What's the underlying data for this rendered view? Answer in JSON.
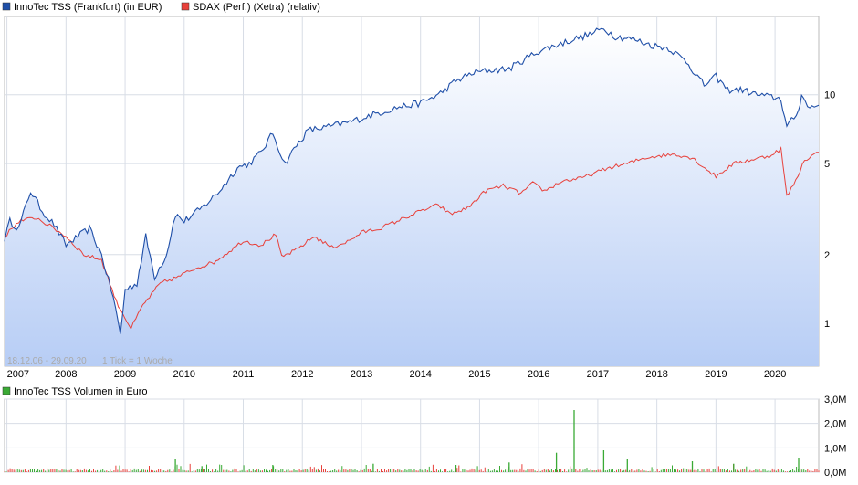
{
  "chart_data": [
    {
      "type": "line",
      "legend": [
        {
          "name": "InnoTec TSS (Frankfurt) (in EUR)",
          "color": "#1f4fa8"
        },
        {
          "name": "SDAX (Perf.) (Xetra) (relativ)",
          "color": "#e8403a"
        }
      ],
      "range_label": "18.12.06 - 29.09.20",
      "tick_label": "1 Tick = 1 Woche",
      "x_ticks": [
        "2007",
        "2008",
        "2009",
        "2010",
        "2011",
        "2012",
        "2013",
        "2014",
        "2015",
        "2016",
        "2017",
        "2018",
        "2019",
        "2020"
      ],
      "y_scale": "log",
      "y_ticks": [
        1,
        2,
        5,
        10
      ],
      "ylim": [
        0.65,
        22
      ],
      "series": [
        {
          "name": "InnoTec TSS (Frankfurt) (in EUR)",
          "color": "#1f4fa8",
          "points": [
            [
              2006.96,
              2.35
            ],
            [
              2007.05,
              2.8
            ],
            [
              2007.2,
              2.6
            ],
            [
              2007.4,
              3.8
            ],
            [
              2007.6,
              3.1
            ],
            [
              2007.8,
              2.7
            ],
            [
              2008.0,
              2.2
            ],
            [
              2008.2,
              2.4
            ],
            [
              2008.4,
              2.6
            ],
            [
              2008.6,
              2.0
            ],
            [
              2008.8,
              1.3
            ],
            [
              2008.92,
              0.9
            ],
            [
              2009.0,
              1.4
            ],
            [
              2009.2,
              1.5
            ],
            [
              2009.35,
              2.4
            ],
            [
              2009.5,
              1.6
            ],
            [
              2009.7,
              2.0
            ],
            [
              2009.85,
              3.0
            ],
            [
              2010.0,
              2.8
            ],
            [
              2010.3,
              3.2
            ],
            [
              2010.6,
              3.8
            ],
            [
              2010.9,
              4.8
            ],
            [
              2011.1,
              5.0
            ],
            [
              2011.3,
              5.6
            ],
            [
              2011.5,
              6.8
            ],
            [
              2011.7,
              5.0
            ],
            [
              2011.9,
              6.0
            ],
            [
              2012.1,
              7.0
            ],
            [
              2012.4,
              7.2
            ],
            [
              2012.8,
              7.6
            ],
            [
              2013.2,
              8.2
            ],
            [
              2013.6,
              8.8
            ],
            [
              2014.0,
              9.2
            ],
            [
              2014.3,
              10.0
            ],
            [
              2014.6,
              11.5
            ],
            [
              2014.9,
              12.5
            ],
            [
              2015.2,
              12.8
            ],
            [
              2015.5,
              13.0
            ],
            [
              2015.8,
              14.5
            ],
            [
              2016.0,
              15.5
            ],
            [
              2016.3,
              16.5
            ],
            [
              2016.6,
              17.5
            ],
            [
              2016.9,
              18.5
            ],
            [
              2017.1,
              19.5
            ],
            [
              2017.3,
              18.0
            ],
            [
              2017.6,
              17.5
            ],
            [
              2017.9,
              16.5
            ],
            [
              2018.2,
              16.0
            ],
            [
              2018.5,
              14.0
            ],
            [
              2018.8,
              11.0
            ],
            [
              2019.0,
              12.0
            ],
            [
              2019.2,
              10.5
            ],
            [
              2019.45,
              10.5
            ],
            [
              2019.7,
              10.0
            ],
            [
              2019.9,
              9.8
            ],
            [
              2020.1,
              9.6
            ],
            [
              2020.2,
              7.2
            ],
            [
              2020.4,
              8.5
            ],
            [
              2020.45,
              10.2
            ],
            [
              2020.55,
              8.8
            ],
            [
              2020.74,
              9.0
            ]
          ]
        },
        {
          "name": "SDAX (Perf.) (Xetra) (relativ)",
          "color": "#e8403a",
          "points": [
            [
              2006.96,
              2.4
            ],
            [
              2007.2,
              2.8
            ],
            [
              2007.5,
              2.9
            ],
            [
              2007.8,
              2.6
            ],
            [
              2008.0,
              2.4
            ],
            [
              2008.3,
              2.0
            ],
            [
              2008.6,
              1.9
            ],
            [
              2008.85,
              1.25
            ],
            [
              2009.1,
              0.95
            ],
            [
              2009.3,
              1.2
            ],
            [
              2009.6,
              1.5
            ],
            [
              2009.9,
              1.6
            ],
            [
              2010.2,
              1.75
            ],
            [
              2010.5,
              1.85
            ],
            [
              2010.8,
              2.1
            ],
            [
              2011.0,
              2.3
            ],
            [
              2011.3,
              2.2
            ],
            [
              2011.55,
              2.45
            ],
            [
              2011.65,
              1.95
            ],
            [
              2011.9,
              2.1
            ],
            [
              2012.2,
              2.4
            ],
            [
              2012.5,
              2.15
            ],
            [
              2012.8,
              2.3
            ],
            [
              2013.0,
              2.5
            ],
            [
              2013.3,
              2.6
            ],
            [
              2013.6,
              2.8
            ],
            [
              2014.0,
              3.1
            ],
            [
              2014.3,
              3.3
            ],
            [
              2014.5,
              3.0
            ],
            [
              2014.8,
              3.2
            ],
            [
              2015.1,
              3.8
            ],
            [
              2015.4,
              4.0
            ],
            [
              2015.7,
              3.7
            ],
            [
              2015.9,
              4.1
            ],
            [
              2016.1,
              3.8
            ],
            [
              2016.4,
              4.2
            ],
            [
              2016.7,
              4.3
            ],
            [
              2016.9,
              4.5
            ],
            [
              2017.2,
              4.8
            ],
            [
              2017.5,
              5.0
            ],
            [
              2017.8,
              5.3
            ],
            [
              2018.0,
              5.4
            ],
            [
              2018.3,
              5.5
            ],
            [
              2018.6,
              5.3
            ],
            [
              2018.85,
              4.7
            ],
            [
              2019.0,
              4.4
            ],
            [
              2019.3,
              5.0
            ],
            [
              2019.6,
              5.2
            ],
            [
              2019.9,
              5.4
            ],
            [
              2020.1,
              5.8
            ],
            [
              2020.2,
              3.6
            ],
            [
              2020.35,
              4.2
            ],
            [
              2020.5,
              5.2
            ],
            [
              2020.74,
              5.6
            ]
          ]
        }
      ]
    },
    {
      "type": "bar",
      "title": "InnoTec TSS Volumen in Euro",
      "color": "#3aaa35",
      "alt_color": "#e8403a",
      "y_ticks": [
        "0,0M",
        "1,0M",
        "2,0M",
        "3,0M"
      ],
      "ylim": [
        0,
        3.0
      ],
      "x_range": [
        2006.96,
        2020.74
      ],
      "spikes": [
        {
          "x": 2009.85,
          "value": 0.55
        },
        {
          "x": 2010.3,
          "value": 0.25
        },
        {
          "x": 2011.5,
          "value": 0.3
        },
        {
          "x": 2013.2,
          "value": 0.35
        },
        {
          "x": 2014.6,
          "value": 0.3
        },
        {
          "x": 2015.5,
          "value": 0.4
        },
        {
          "x": 2016.3,
          "value": 0.8
        },
        {
          "x": 2016.6,
          "value": 2.55
        },
        {
          "x": 2017.1,
          "value": 0.9
        },
        {
          "x": 2017.5,
          "value": 0.55
        },
        {
          "x": 2018.6,
          "value": 0.45
        },
        {
          "x": 2019.3,
          "value": 0.35
        },
        {
          "x": 2020.4,
          "value": 0.6
        }
      ],
      "baseline_volume": 0.12
    }
  ]
}
